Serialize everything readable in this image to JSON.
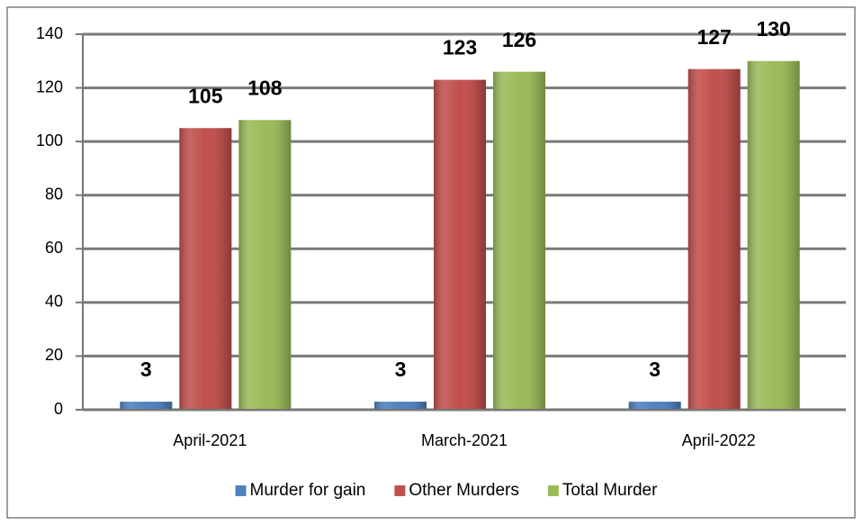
{
  "chart_data": {
    "type": "bar",
    "categories": [
      "April-2021",
      "March-2021",
      "April-2022"
    ],
    "series": [
      {
        "name": "Murder for gain",
        "color": "#4f81bd",
        "values": [
          3,
          3,
          3
        ]
      },
      {
        "name": "Other Murders",
        "color": "#c0504d",
        "values": [
          105,
          123,
          127
        ]
      },
      {
        "name": "Total Murder",
        "color": "#9bbb59",
        "values": [
          108,
          126,
          130
        ]
      }
    ],
    "ylim": [
      0,
      140
    ],
    "yticks": [
      0,
      20,
      40,
      60,
      80,
      100,
      120,
      140
    ],
    "grid": true,
    "legend": "bottom"
  }
}
